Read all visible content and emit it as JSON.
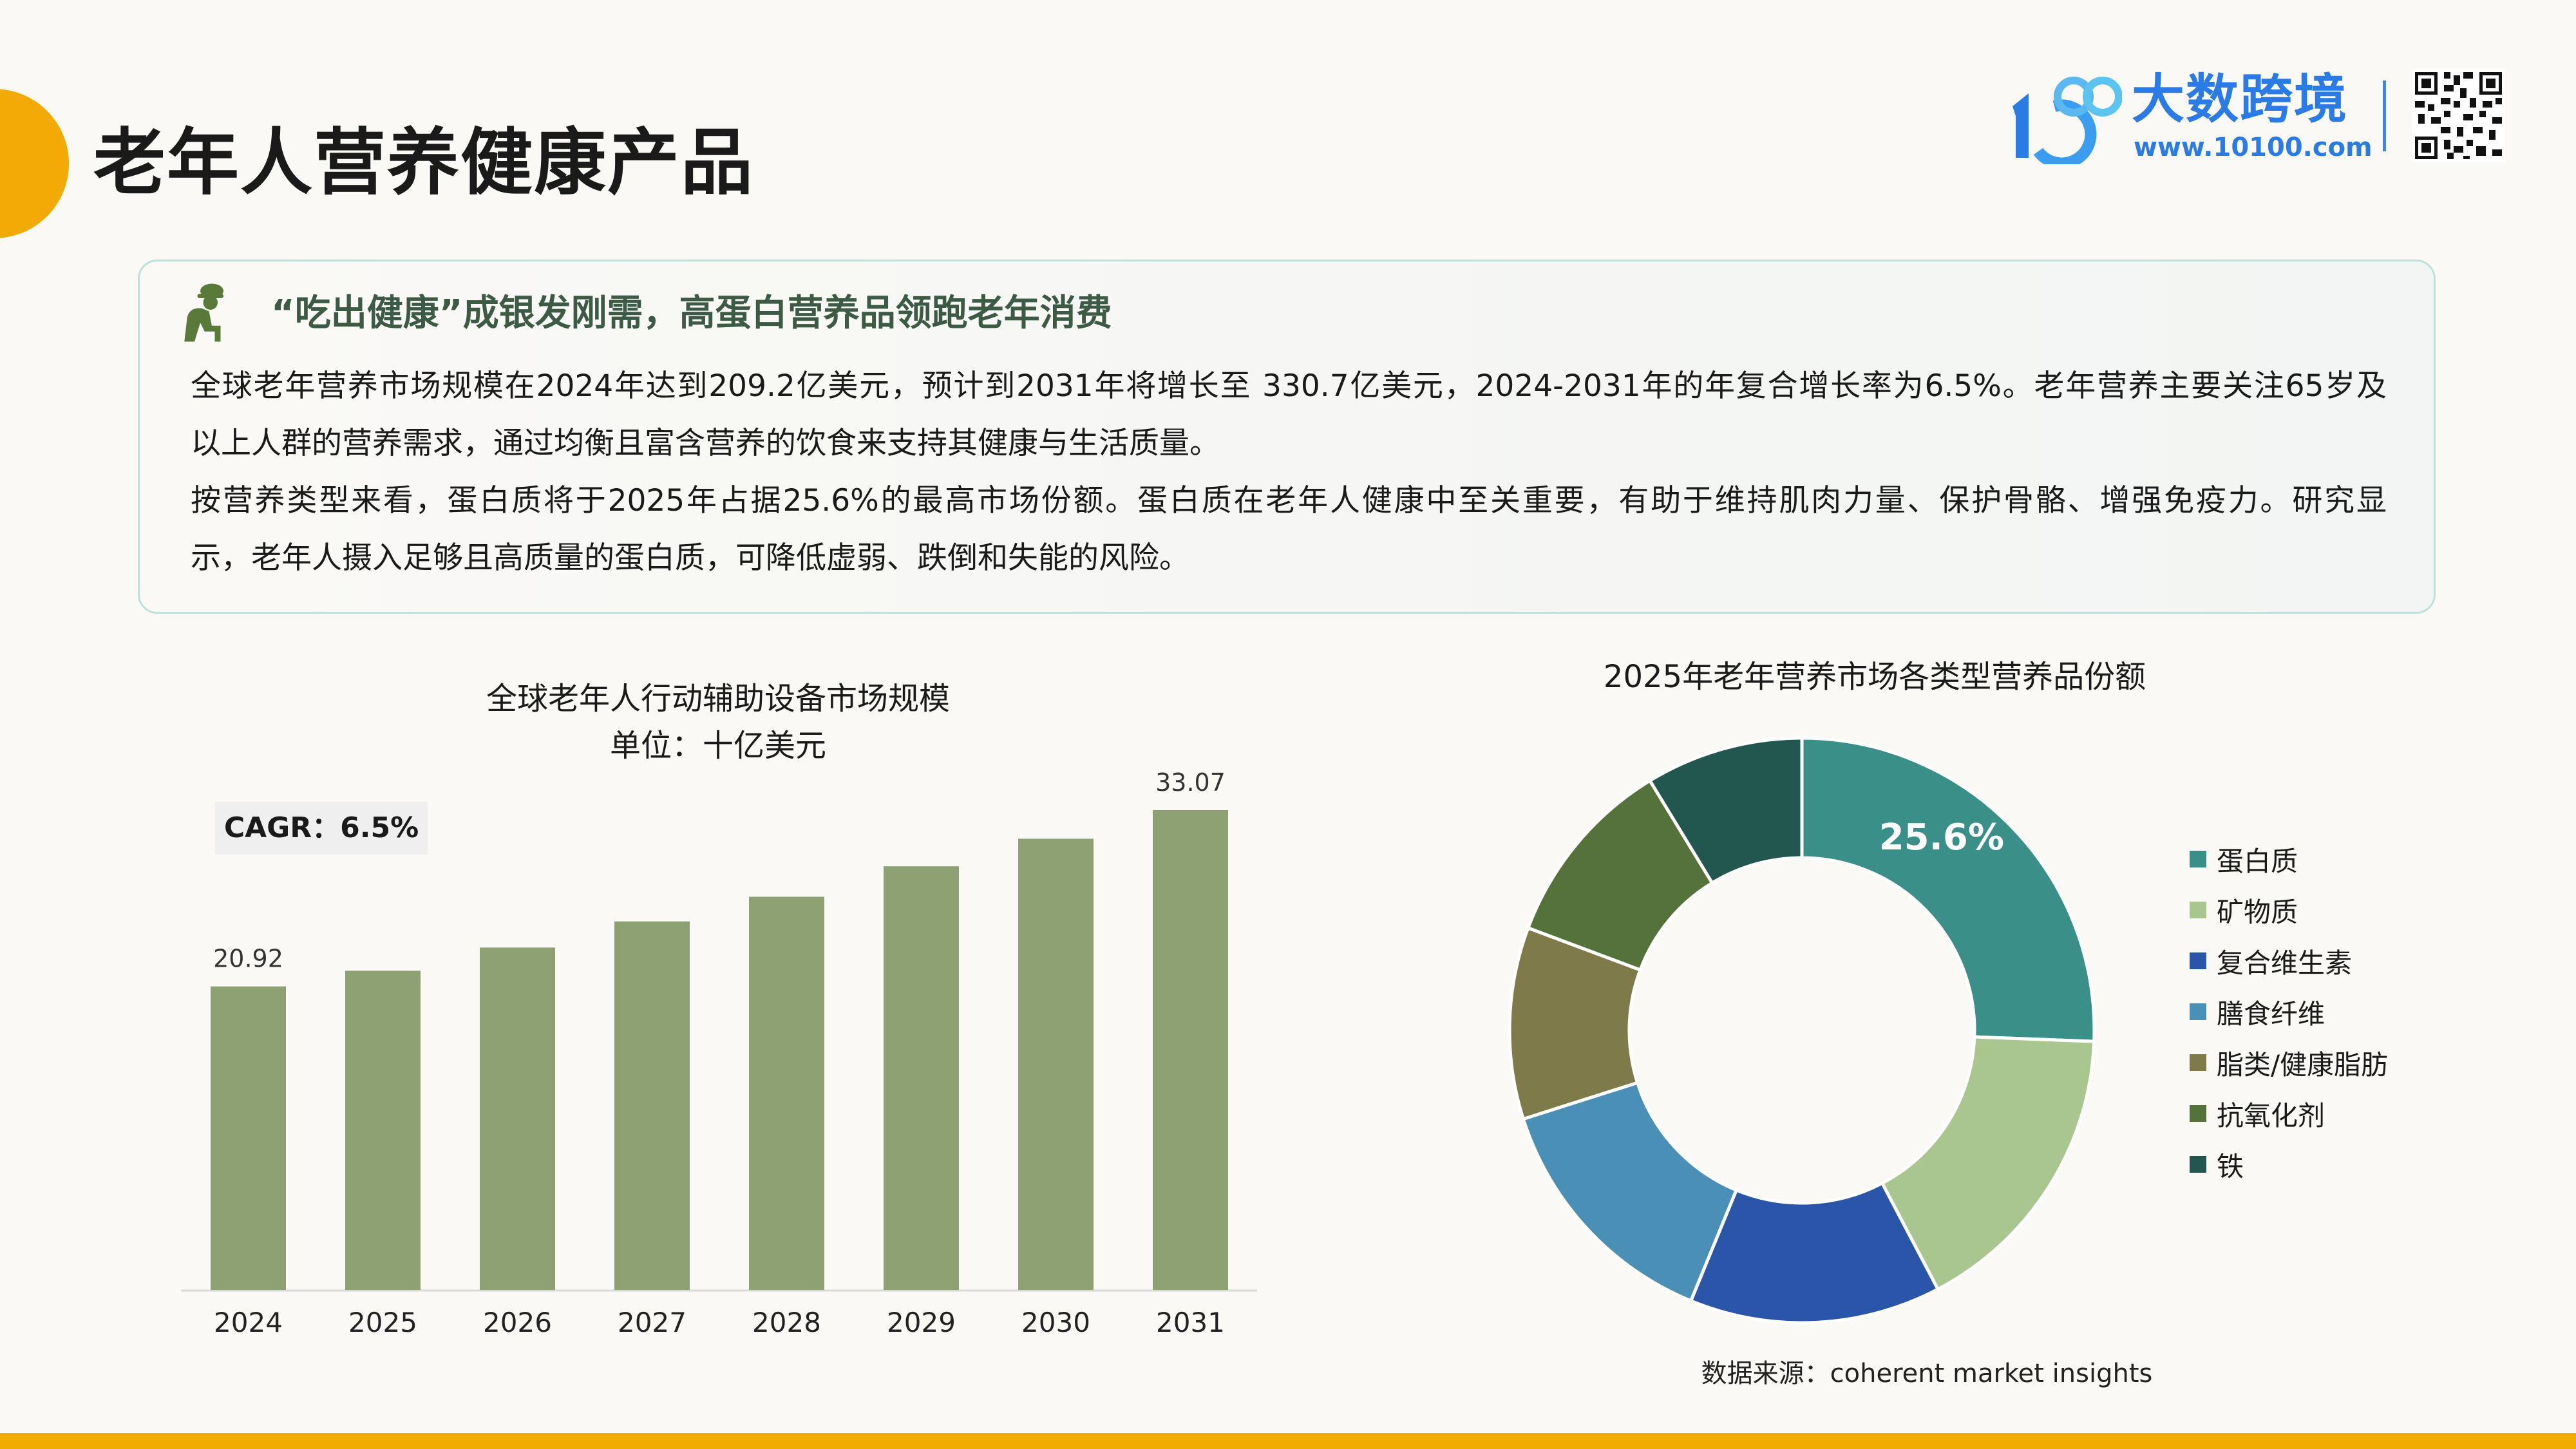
{
  "header": {
    "title": "老年人营养健康产品",
    "logo_name": "大数跨境",
    "logo_url": "www.10100.com",
    "logo_mark": "10100"
  },
  "summary": {
    "icon": "elderly-person-icon",
    "heading": "“吃出健康”成银发刚需，高蛋白营养品领跑老年消费",
    "lines": [
      "全球老年营养市场规模在2024年达到209.2亿美元，预计到2031年将增长至 330.7亿美元，2024-2031年的年复合增长率为6.5%。老年营养主要关注65岁及",
      "以上人群的营养需求，通过均衡且富含营养的饮食来支持其健康与生活质量。",
      "按营养类型来看，蛋白质将于2025年占据25.6%的最高市场份额。蛋白质在老年人健康中至关重要，有助于维持肌肉力量、保护骨骼、增强免疫力。研究显",
      "示，老年人摄入足够且高质量的蛋白质，可降低虚弱、跌倒和失能的风险。"
    ]
  },
  "chart_data": [
    {
      "type": "bar",
      "title": "全球老年人行动辅助设备市场规模",
      "subtitle": "单位：十亿美元",
      "annotation": "CAGR：6.5%",
      "categories": [
        "2024",
        "2025",
        "2026",
        "2027",
        "2028",
        "2029",
        "2030",
        "2031"
      ],
      "values": [
        20.92,
        22.0,
        23.6,
        25.4,
        27.1,
        29.2,
        31.1,
        33.07
      ],
      "data_labels": {
        "0": "20.92",
        "7": "33.07"
      },
      "ylim": [
        0,
        33.07
      ],
      "color": "#8da173",
      "grid": false
    },
    {
      "type": "pie",
      "variant": "donut",
      "title": "2025年老年营养市场各类型营养品份额",
      "labels": [
        "蛋白质",
        "矿物质",
        "复合维生素",
        "膳食纤维",
        "脂类/健康脂肪",
        "抗氧化剂",
        "铁"
      ],
      "values": [
        25.6,
        16.7,
        13.9,
        13.9,
        10.6,
        10.6,
        8.7
      ],
      "colors": [
        "#3a8f88",
        "#a9c68f",
        "#2b55a8",
        "#4a8fb5",
        "#7f7a4a",
        "#55723a",
        "#22574f"
      ],
      "slice_label": "25.6%",
      "legend_position": "right",
      "source": "数据来源：coherent market insights"
    }
  ],
  "colors": {
    "accent": "#f2ab06",
    "brand": "#2a7be6",
    "heading": "#3d5a45"
  }
}
